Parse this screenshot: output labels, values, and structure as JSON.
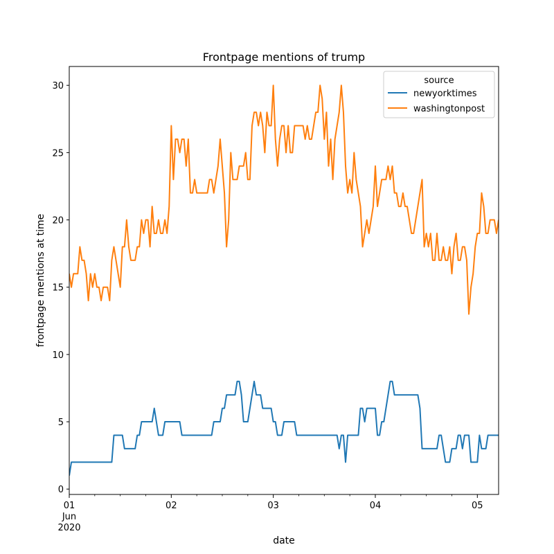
{
  "chart_data": {
    "type": "line",
    "title": "Frontpage mentions of trump",
    "xlabel": "date",
    "ylabel": "frontpage mentions at time",
    "x_unit": "hours since 2020-06-01 00:00",
    "xlim": [
      0,
      101
    ],
    "ylim": [
      -0.4,
      31.4
    ],
    "x_ticks": [
      {
        "x": 0,
        "label": "01",
        "sub": [
          "Jun",
          "2020"
        ]
      },
      {
        "x": 24,
        "label": "02"
      },
      {
        "x": 48,
        "label": "03"
      },
      {
        "x": 72,
        "label": "04"
      },
      {
        "x": 96,
        "label": "05"
      }
    ],
    "y_ticks": [
      0,
      5,
      10,
      15,
      20,
      25,
      30
    ],
    "legend": {
      "title": "source",
      "placement": "upper right"
    },
    "series": [
      {
        "name": "newyorktimes",
        "color": "#1f77b4",
        "points": [
          [
            0,
            1
          ],
          [
            0.5,
            2
          ],
          [
            10,
            2
          ],
          [
            10.5,
            4
          ],
          [
            12.5,
            4
          ],
          [
            13,
            3
          ],
          [
            15.5,
            3
          ],
          [
            16,
            4
          ],
          [
            16.5,
            4
          ],
          [
            17,
            5
          ],
          [
            19.5,
            5
          ],
          [
            20,
            6
          ],
          [
            21,
            4
          ],
          [
            22,
            4
          ],
          [
            22.5,
            5
          ],
          [
            26,
            5
          ],
          [
            26.5,
            4
          ],
          [
            33.5,
            4
          ],
          [
            34,
            5
          ],
          [
            35.5,
            5
          ],
          [
            36,
            6
          ],
          [
            36.5,
            6
          ],
          [
            37,
            7
          ],
          [
            39,
            7
          ],
          [
            39.5,
            8
          ],
          [
            40,
            8
          ],
          [
            40.5,
            7
          ],
          [
            41,
            5
          ],
          [
            42,
            5
          ],
          [
            43,
            7
          ],
          [
            43.5,
            8
          ],
          [
            44,
            7
          ],
          [
            45,
            7
          ],
          [
            45.5,
            6
          ],
          [
            47.5,
            6
          ],
          [
            48,
            5
          ],
          [
            48.5,
            5
          ],
          [
            49,
            4
          ],
          [
            50,
            4
          ],
          [
            50.5,
            5
          ],
          [
            53,
            5
          ],
          [
            53.5,
            4
          ],
          [
            63,
            4
          ],
          [
            63.5,
            3
          ],
          [
            64,
            4
          ],
          [
            64.5,
            4
          ],
          [
            65,
            2
          ],
          [
            65.5,
            4
          ],
          [
            68,
            4
          ],
          [
            68.5,
            6
          ],
          [
            69,
            6
          ],
          [
            69.5,
            5
          ],
          [
            70,
            6
          ],
          [
            72,
            6
          ],
          [
            72.5,
            4
          ],
          [
            73,
            4
          ],
          [
            73.5,
            5
          ],
          [
            74,
            5
          ],
          [
            74.5,
            6
          ],
          [
            75.5,
            8
          ],
          [
            76,
            8
          ],
          [
            76.5,
            7
          ],
          [
            82,
            7
          ],
          [
            82.5,
            6
          ],
          [
            83,
            3
          ],
          [
            86.5,
            3
          ],
          [
            87,
            4
          ],
          [
            87.5,
            4
          ],
          [
            88,
            3
          ],
          [
            88.5,
            2
          ],
          [
            89.5,
            2
          ],
          [
            90,
            3
          ],
          [
            91,
            3
          ],
          [
            91.5,
            4
          ],
          [
            92,
            4
          ],
          [
            92.5,
            3
          ],
          [
            93,
            4
          ],
          [
            94,
            4
          ],
          [
            94.5,
            2
          ],
          [
            96,
            2
          ],
          [
            96.5,
            4
          ],
          [
            97,
            3
          ],
          [
            98,
            3
          ],
          [
            98.5,
            4
          ],
          [
            101,
            4
          ]
        ]
      },
      {
        "name": "washingtonpost",
        "color": "#ff7f0e",
        "points": [
          [
            0,
            16
          ],
          [
            0.5,
            15
          ],
          [
            1,
            16
          ],
          [
            2,
            16
          ],
          [
            2.5,
            18
          ],
          [
            3,
            17
          ],
          [
            3.5,
            17
          ],
          [
            4,
            16
          ],
          [
            4.5,
            14
          ],
          [
            5,
            16
          ],
          [
            5.5,
            15
          ],
          [
            6,
            16
          ],
          [
            6.5,
            15
          ],
          [
            7,
            15
          ],
          [
            7.5,
            14
          ],
          [
            8,
            15
          ],
          [
            9,
            15
          ],
          [
            9.5,
            14
          ],
          [
            10,
            17
          ],
          [
            10.5,
            18
          ],
          [
            11,
            17
          ],
          [
            12,
            15
          ],
          [
            12.5,
            18
          ],
          [
            13,
            18
          ],
          [
            13.5,
            20
          ],
          [
            14,
            18
          ],
          [
            14.5,
            17
          ],
          [
            15.5,
            17
          ],
          [
            16,
            18
          ],
          [
            16.5,
            18
          ],
          [
            17,
            20
          ],
          [
            17.5,
            19
          ],
          [
            18,
            20
          ],
          [
            18.5,
            20
          ],
          [
            19,
            18
          ],
          [
            19.5,
            21
          ],
          [
            20,
            19
          ],
          [
            20.5,
            19
          ],
          [
            21,
            20
          ],
          [
            21.5,
            19
          ],
          [
            22,
            19
          ],
          [
            22.5,
            20
          ],
          [
            23,
            19
          ],
          [
            23.5,
            21
          ],
          [
            24,
            27
          ],
          [
            24.5,
            23
          ],
          [
            25,
            26
          ],
          [
            25.5,
            26
          ],
          [
            26,
            25
          ],
          [
            26.5,
            26
          ],
          [
            27,
            26
          ],
          [
            27.5,
            24
          ],
          [
            28,
            26
          ],
          [
            28.5,
            22
          ],
          [
            29,
            22
          ],
          [
            29.5,
            23
          ],
          [
            30,
            22
          ],
          [
            32.5,
            22
          ],
          [
            33,
            23
          ],
          [
            33.5,
            23
          ],
          [
            34,
            22
          ],
          [
            35,
            24
          ],
          [
            35.5,
            26
          ],
          [
            36,
            24
          ],
          [
            36.5,
            22
          ],
          [
            37,
            18
          ],
          [
            37.5,
            20
          ],
          [
            38,
            25
          ],
          [
            38.5,
            23
          ],
          [
            39,
            23
          ],
          [
            39.5,
            23
          ],
          [
            40,
            24
          ],
          [
            41,
            24
          ],
          [
            41.5,
            25
          ],
          [
            42,
            23
          ],
          [
            42.5,
            23
          ],
          [
            43,
            27
          ],
          [
            43.5,
            28
          ],
          [
            44,
            28
          ],
          [
            44.5,
            27
          ],
          [
            45,
            28
          ],
          [
            45.5,
            27
          ],
          [
            46,
            25
          ],
          [
            46.5,
            28
          ],
          [
            47,
            27
          ],
          [
            47.5,
            27
          ],
          [
            48,
            30
          ],
          [
            48.5,
            26
          ],
          [
            49,
            24
          ],
          [
            49.5,
            26
          ],
          [
            50,
            27
          ],
          [
            50.5,
            27
          ],
          [
            51,
            25
          ],
          [
            51.5,
            27
          ],
          [
            52,
            25
          ],
          [
            52.5,
            25
          ],
          [
            53,
            27
          ],
          [
            55,
            27
          ],
          [
            55.5,
            26
          ],
          [
            56,
            27
          ],
          [
            56.5,
            26
          ],
          [
            57,
            26
          ],
          [
            58,
            28
          ],
          [
            58.5,
            28
          ],
          [
            59,
            30
          ],
          [
            59.5,
            29
          ],
          [
            60,
            26
          ],
          [
            60.5,
            28
          ],
          [
            61,
            24
          ],
          [
            61.5,
            26
          ],
          [
            62,
            23
          ],
          [
            62.5,
            26
          ],
          [
            63.5,
            28
          ],
          [
            64,
            30
          ],
          [
            64.5,
            28
          ],
          [
            65,
            24
          ],
          [
            65.5,
            22
          ],
          [
            66,
            23
          ],
          [
            66.5,
            22
          ],
          [
            67,
            25
          ],
          [
            67.5,
            23
          ],
          [
            68.5,
            21
          ],
          [
            69,
            18
          ],
          [
            69.5,
            19
          ],
          [
            70,
            20
          ],
          [
            70.5,
            19
          ],
          [
            71,
            20
          ],
          [
            71.5,
            21
          ],
          [
            72,
            24
          ],
          [
            72.5,
            21
          ],
          [
            73,
            22
          ],
          [
            73.5,
            23
          ],
          [
            74,
            23
          ],
          [
            74.5,
            23
          ],
          [
            75,
            24
          ],
          [
            75.5,
            23
          ],
          [
            76,
            24
          ],
          [
            76.5,
            22
          ],
          [
            77,
            22
          ],
          [
            77.5,
            21
          ],
          [
            78,
            21
          ],
          [
            78.5,
            22
          ],
          [
            79,
            21
          ],
          [
            79.5,
            21
          ],
          [
            80,
            20
          ],
          [
            80.5,
            19
          ],
          [
            81,
            19
          ],
          [
            82.5,
            22
          ],
          [
            83,
            23
          ],
          [
            83.5,
            18
          ],
          [
            84,
            19
          ],
          [
            84.5,
            18
          ],
          [
            85,
            19
          ],
          [
            85.5,
            17
          ],
          [
            86,
            17
          ],
          [
            86.5,
            19
          ],
          [
            87,
            17
          ],
          [
            87.5,
            17
          ],
          [
            88,
            18
          ],
          [
            88.5,
            17
          ],
          [
            89,
            17
          ],
          [
            89.5,
            18
          ],
          [
            90,
            16
          ],
          [
            90.5,
            18
          ],
          [
            91,
            19
          ],
          [
            91.5,
            17
          ],
          [
            92,
            17
          ],
          [
            92.5,
            18
          ],
          [
            93,
            18
          ],
          [
            93.5,
            17
          ],
          [
            94,
            13
          ],
          [
            94.5,
            15
          ],
          [
            95,
            16
          ],
          [
            95.5,
            18
          ],
          [
            96,
            19
          ],
          [
            96.5,
            19
          ],
          [
            97,
            22
          ],
          [
            97.5,
            21
          ],
          [
            98,
            19
          ],
          [
            98.5,
            19
          ],
          [
            99,
            20
          ],
          [
            100,
            20
          ],
          [
            100.5,
            19
          ],
          [
            101,
            20
          ]
        ]
      }
    ]
  }
}
